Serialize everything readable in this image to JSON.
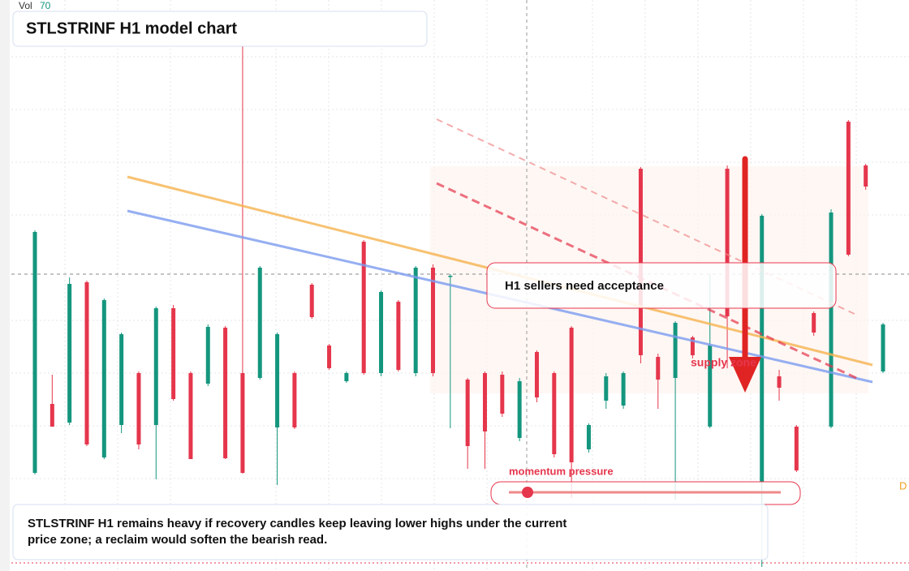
{
  "chart_data": {
    "type": "candlestick",
    "title": "STLSTRINF H1 model chart",
    "volume_label": "Vol",
    "volume_value": "70",
    "callout": "H1 sellers need acceptance",
    "zone_label": "supply zone",
    "slider_label": "momentum pressure",
    "note": "STLSTRINF H1 remains heavy if recovery candles keep leaving lower highs under the current price zone; a reclaim would soften the bearish read.",
    "edge_label": "D",
    "up_color": "#14967e",
    "down_color": "#e5364c",
    "ylim": [
      0,
      704
    ],
    "categories": [
      null,
      null,
      null,
      null,
      null,
      null,
      null,
      null,
      null,
      null,
      null,
      null,
      null,
      null,
      null,
      null,
      null,
      null,
      null,
      null,
      null,
      null,
      null,
      null,
      null,
      null,
      null,
      null,
      null,
      null,
      null,
      null,
      null,
      null,
      null,
      null,
      null,
      null,
      null,
      null,
      null,
      null,
      null,
      null,
      null,
      null,
      null,
      null,
      null,
      null
    ],
    "open": [
      121,
      206,
      183,
      356,
      140,
      180,
      244,
      180,
      324,
      244,
      231,
      300,
      244,
      238,
      177,
      244,
      353,
      278,
      234,
      406,
      244,
      332,
      244,
      374,
      364,
      236,
      244,
      242,
      164,
      270,
      244,
      300,
      150,
      210,
      204,
      496,
      264,
      238,
      288,
      178,
      496,
      430,
      110,
      240,
      178,
      318,
      178,
      554,
      500,
      246
    ],
    "high": [
      420,
      242,
      362,
      358,
      336,
      294,
      246,
      326,
      328,
      246,
      304,
      302,
      664,
      376,
      294,
      246,
      355,
      280,
      246,
      408,
      346,
      334,
      376,
      378,
      366,
      238,
      246,
      246,
      238,
      272,
      246,
      302,
      182,
      244,
      246,
      498,
      268,
      308,
      290,
      366,
      500,
      434,
      440,
      248,
      180,
      320,
      446,
      556,
      502,
      306
    ],
    "low": [
      119,
      178,
      180,
      154,
      138,
      170,
      150,
      113,
      210,
      138,
      228,
      138,
      120,
      236,
      106,
      175,
      311,
      248,
      232,
      242,
      240,
      246,
      240,
      240,
      176,
      126,
      126,
      190,
      160,
      208,
      140,
      90,
      146,
      200,
      200,
      256,
      200,
      88,
      262,
      176,
      250,
      370,
      5,
      210,
      122,
      290,
      176,
      388,
      470,
      244
    ],
    "close": [
      418,
      178,
      354,
      156,
      334,
      292,
      156,
      324,
      212,
      138,
      301,
      139,
      121,
      374,
      292,
      177,
      313,
      250,
      244,
      244,
      344,
      248,
      374,
      244,
      364,
      154,
      172,
      194,
      234,
      214,
      144,
      134,
      180,
      240,
      244,
      266,
      236,
      306,
      266,
      278,
      314,
      372,
      438,
      226,
      124,
      294,
      442,
      390,
      474,
      304
    ]
  }
}
